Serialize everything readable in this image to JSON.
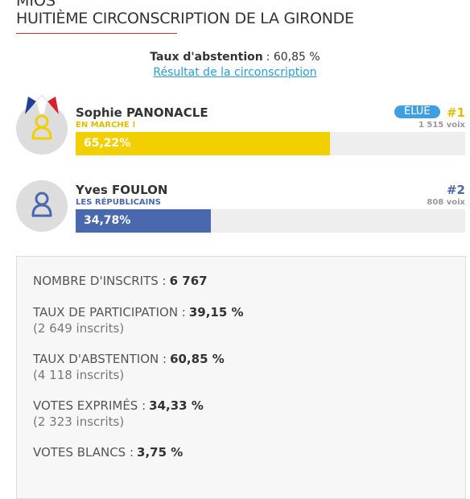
{
  "header": {
    "commune": "MIOS",
    "title": "HUITIÈME CIRCONSCRIPTION DE LA GIRONDE"
  },
  "abstention": {
    "label": "Taux d'abstention",
    "value": ": 60,85 %",
    "link": "Résultat de la circonscription"
  },
  "bars": {
    "xlim": [
      0,
      100
    ]
  },
  "candidates": [
    {
      "name": "Sophie PANONACLE",
      "party": "EN MARCHE !",
      "share": 65.22,
      "share_label": "65,22%",
      "badge": "ÉLUE",
      "rank": "#1",
      "votes": "1 515 voix",
      "color": "#f2d000",
      "party_color": "#e0bd00"
    },
    {
      "name": "Yves FOULON",
      "party": "LES RÉPUBLICAINS",
      "share": 34.78,
      "share_label": "34,78%",
      "rank": "#2",
      "votes": "808 voix",
      "color": "#4a68ae",
      "party_color": "#4a68ae"
    }
  ],
  "stats": [
    {
      "label": "NOMBRE D'INSCRITS :",
      "value": "6 767"
    },
    {
      "label": "TAUX DE PARTICIPATION :",
      "value": "39,15 %",
      "note": "(2 649 inscrits)"
    },
    {
      "label": "TAUX D'ABSTENTION :",
      "value": "60,85 %",
      "note": "(4 118 inscrits)"
    },
    {
      "label": "VOTES EXPRIMÉS :",
      "value": "34,33 %",
      "note": "(2 323 inscrits)"
    },
    {
      "label": "VOTES BLANCS :",
      "value": "3,75 %"
    }
  ]
}
